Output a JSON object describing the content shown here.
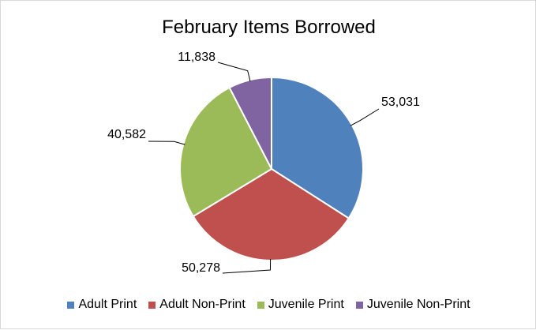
{
  "chart_data": {
    "type": "pie",
    "title": "February Items Borrowed",
    "categories": [
      "Adult Print",
      "Adult Non-Print",
      "Juvenile Print",
      "Juvenile Non-Print"
    ],
    "values": [
      53031,
      50278,
      40582,
      11838
    ],
    "data_labels": [
      "53,031",
      "50,278",
      "40,582",
      "11,838"
    ],
    "colors": [
      "#4F81BD",
      "#C0504D",
      "#9BBB59",
      "#8064A2"
    ],
    "legend_position": "bottom",
    "start_angle": "12 o'clock",
    "direction": "clockwise"
  }
}
